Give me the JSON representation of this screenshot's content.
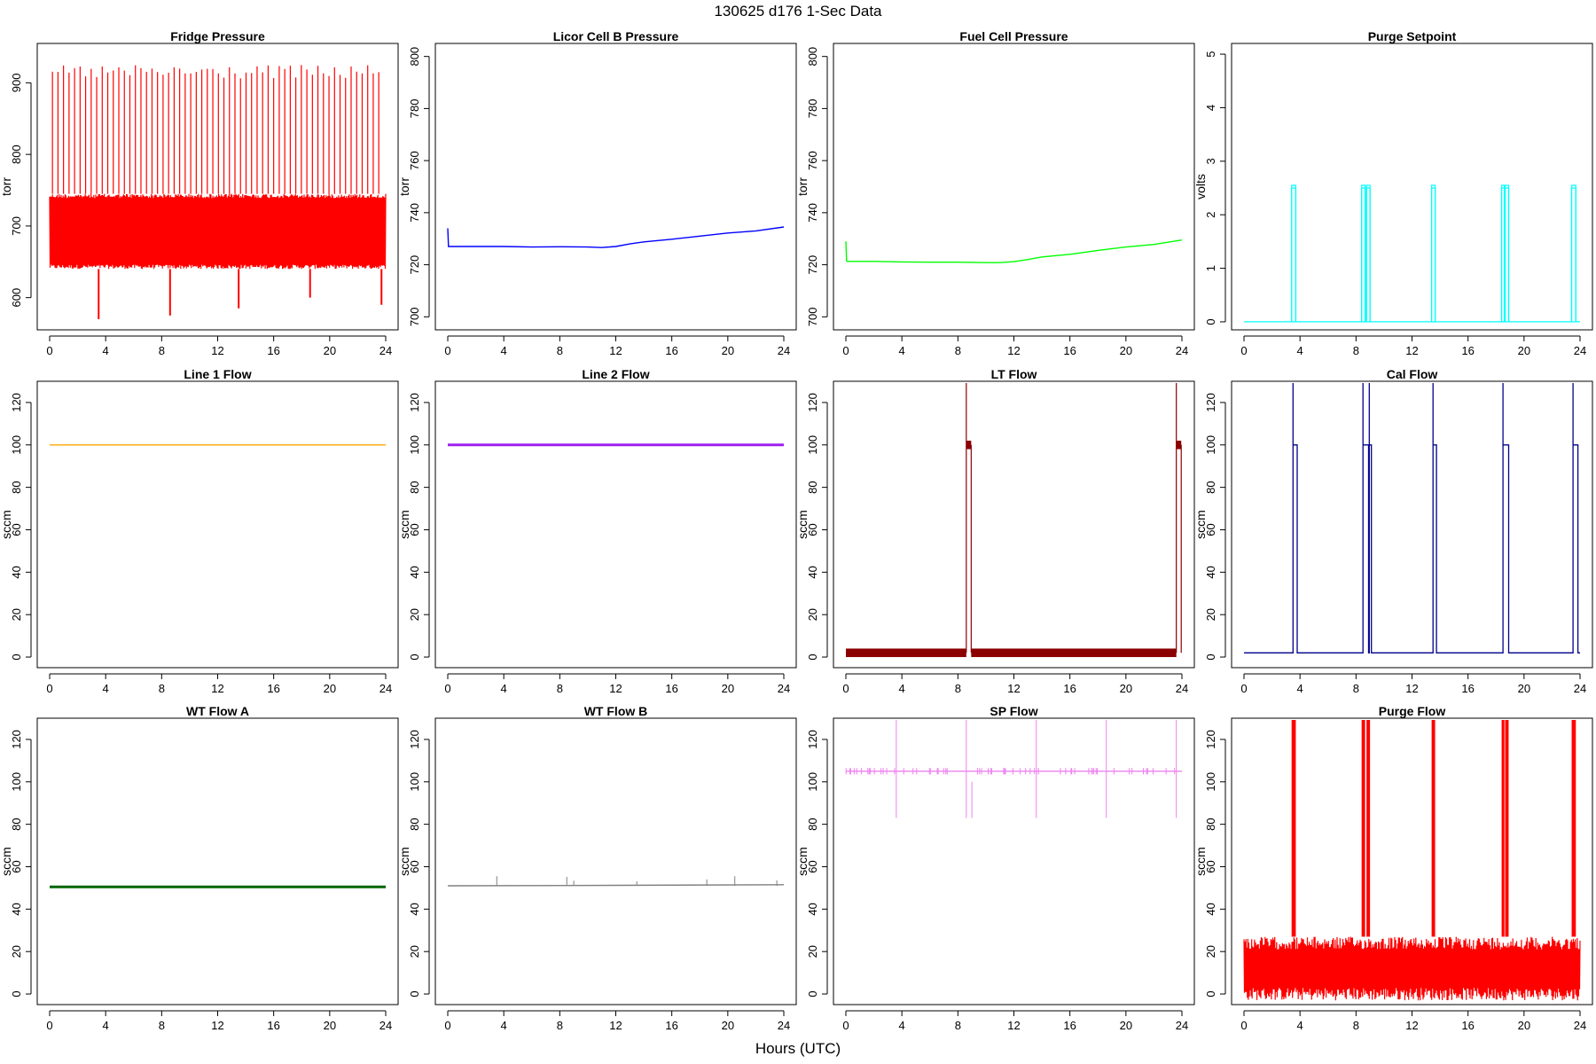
{
  "figure": {
    "title": "130625    d176    1-Sec Data",
    "xlabel": "Hours (UTC)"
  },
  "chart_data": [
    {
      "type": "line",
      "title": "Fridge Pressure",
      "ylabel": "torr",
      "color": "#ff0000",
      "xlim": [
        0,
        24
      ],
      "ylim": [
        555,
        955
      ],
      "xticks": [
        0,
        4,
        8,
        12,
        16,
        20,
        24
      ],
      "yticks": [
        600,
        700,
        800,
        900
      ],
      "band": {
        "low": 640,
        "high": 745
      },
      "spike_top": 925,
      "dips": [
        {
          "x": 3.5,
          "y": 570
        },
        {
          "x": 8.6,
          "y": 575
        },
        {
          "x": 13.5,
          "y": 585
        },
        {
          "x": 18.6,
          "y": 600
        },
        {
          "x": 23.7,
          "y": 590
        }
      ]
    },
    {
      "type": "line",
      "title": "Licor Cell B Pressure",
      "ylabel": "torr",
      "color": "#0000ff",
      "xlim": [
        0,
        24
      ],
      "ylim": [
        695,
        805
      ],
      "xticks": [
        0,
        4,
        8,
        12,
        16,
        20,
        24
      ],
      "yticks": [
        700,
        720,
        740,
        760,
        780,
        800
      ],
      "x": [
        0,
        0.05,
        0.1,
        2,
        4,
        6,
        8,
        10,
        11,
        12,
        13,
        14,
        16,
        18,
        20,
        22,
        24
      ],
      "y": [
        734,
        727,
        727,
        727,
        727,
        726.8,
        726.9,
        726.8,
        726.6,
        727,
        728,
        728.8,
        729.8,
        731,
        732.2,
        733,
        734.5
      ]
    },
    {
      "type": "line",
      "title": "Fuel Cell Pressure",
      "ylabel": "torr",
      "color": "#00ff00",
      "xlim": [
        0,
        24
      ],
      "ylim": [
        695,
        805
      ],
      "xticks": [
        0,
        4,
        8,
        12,
        16,
        20,
        24
      ],
      "yticks": [
        700,
        720,
        740,
        760,
        780,
        800
      ],
      "x": [
        0,
        0.05,
        0.1,
        2,
        4,
        6,
        8,
        10,
        11,
        12,
        13,
        14,
        16,
        18,
        20,
        22,
        24
      ],
      "y": [
        729,
        721.5,
        721.3,
        721.3,
        721.1,
        721,
        721,
        720.8,
        720.8,
        721.2,
        722,
        723,
        724,
        725.5,
        726.8,
        727.8,
        729.5
      ]
    },
    {
      "type": "line",
      "title": "Purge Setpoint",
      "ylabel": "volts",
      "color": "#00ffff",
      "xlim": [
        0,
        24
      ],
      "ylim": [
        -0.15,
        5.2
      ],
      "xticks": [
        0,
        4,
        8,
        12,
        16,
        20,
        24
      ],
      "yticks": [
        0,
        1,
        2,
        3,
        4,
        5
      ],
      "baseline": 0,
      "pulse_value": 2.5,
      "pulses": [
        [
          3.4,
          3.7
        ],
        [
          8.4,
          8.65
        ],
        [
          8.75,
          9.0
        ],
        [
          13.4,
          13.65
        ],
        [
          18.4,
          18.6
        ],
        [
          18.65,
          18.9
        ],
        [
          23.4,
          23.7
        ]
      ]
    },
    {
      "type": "line",
      "title": "Line 1 Flow",
      "ylabel": "sccm",
      "color": "#ffa500",
      "xlim": [
        0,
        24
      ],
      "ylim": [
        -5,
        130
      ],
      "xticks": [
        0,
        4,
        8,
        12,
        16,
        20,
        24
      ],
      "yticks": [
        0,
        20,
        40,
        60,
        80,
        100,
        120
      ],
      "x": [
        0,
        24
      ],
      "y": [
        100,
        100
      ]
    },
    {
      "type": "line",
      "title": "Line 2 Flow",
      "ylabel": "sccm",
      "color": "#a020f0",
      "xlim": [
        0,
        24
      ],
      "ylim": [
        -5,
        130
      ],
      "xticks": [
        0,
        4,
        8,
        12,
        16,
        20,
        24
      ],
      "yticks": [
        0,
        20,
        40,
        60,
        80,
        100,
        120
      ],
      "x": [
        0,
        24
      ],
      "y": [
        100,
        100
      ]
    },
    {
      "type": "line",
      "title": "LT Flow",
      "ylabel": "sccm",
      "color": "#8b0000",
      "xlim": [
        0,
        24
      ],
      "ylim": [
        -5,
        130
      ],
      "xticks": [
        0,
        4,
        8,
        12,
        16,
        20,
        24
      ],
      "yticks": [
        0,
        20,
        40,
        60,
        80,
        100,
        120
      ],
      "band": {
        "low": 0,
        "high": 4
      },
      "events": [
        {
          "x0": 8.6,
          "x1": 8.95,
          "y": 100
        },
        {
          "x0": 23.6,
          "x1": 23.95,
          "y": 100
        }
      ]
    },
    {
      "type": "line",
      "title": "Cal Flow",
      "ylabel": "sccm",
      "color": "#00008b",
      "xlim": [
        0,
        24
      ],
      "ylim": [
        -5,
        130
      ],
      "xticks": [
        0,
        4,
        8,
        12,
        16,
        20,
        24
      ],
      "yticks": [
        0,
        20,
        40,
        60,
        80,
        100,
        120
      ],
      "baseline": 2,
      "pulse_value": 100,
      "pulses": [
        [
          3.5,
          3.8
        ],
        [
          8.5,
          8.9
        ],
        [
          8.95,
          9.1
        ],
        [
          13.5,
          13.75
        ],
        [
          18.5,
          18.9
        ],
        [
          23.5,
          23.85
        ]
      ]
    },
    {
      "type": "line",
      "title": "WT Flow A",
      "ylabel": "sccm",
      "color": "#006400",
      "xlim": [
        0,
        24
      ],
      "ylim": [
        -5,
        130
      ],
      "xticks": [
        0,
        4,
        8,
        12,
        16,
        20,
        24
      ],
      "yticks": [
        0,
        20,
        40,
        60,
        80,
        100,
        120
      ],
      "x": [
        0,
        24
      ],
      "y": [
        50.5,
        50.5
      ]
    },
    {
      "type": "line",
      "title": "WT Flow B",
      "ylabel": "sccm",
      "color": "#808080",
      "xlim": [
        0,
        24
      ],
      "ylim": [
        -5,
        130
      ],
      "xticks": [
        0,
        4,
        8,
        12,
        16,
        20,
        24
      ],
      "yticks": [
        0,
        20,
        40,
        60,
        80,
        100,
        120
      ],
      "x": [
        0,
        12,
        24
      ],
      "y": [
        51,
        51.2,
        51.5
      ]
    },
    {
      "type": "line",
      "title": "SP Flow",
      "ylabel": "sccm",
      "color": "#ee82ee",
      "xlim": [
        0,
        24
      ],
      "ylim": [
        -5,
        130
      ],
      "xticks": [
        0,
        4,
        8,
        12,
        16,
        20,
        24
      ],
      "yticks": [
        0,
        20,
        40,
        60,
        80,
        100,
        120
      ],
      "x": [
        0,
        24
      ],
      "y": [
        105,
        105
      ]
    },
    {
      "type": "line",
      "title": "Purge Flow",
      "ylabel": "sccm",
      "color": "#ff0000",
      "xlim": [
        0,
        24
      ],
      "ylim": [
        -5,
        130
      ],
      "xticks": [
        0,
        4,
        8,
        12,
        16,
        20,
        24
      ],
      "yticks": [
        0,
        20,
        40,
        60,
        80,
        100,
        120
      ],
      "band": {
        "low": -3,
        "high": 27
      },
      "pulses": [
        [
          3.4,
          3.7
        ],
        [
          8.4,
          8.65
        ],
        [
          8.75,
          9.0
        ],
        [
          13.4,
          13.65
        ],
        [
          18.4,
          18.6
        ],
        [
          18.65,
          18.9
        ],
        [
          23.4,
          23.7
        ]
      ]
    }
  ]
}
